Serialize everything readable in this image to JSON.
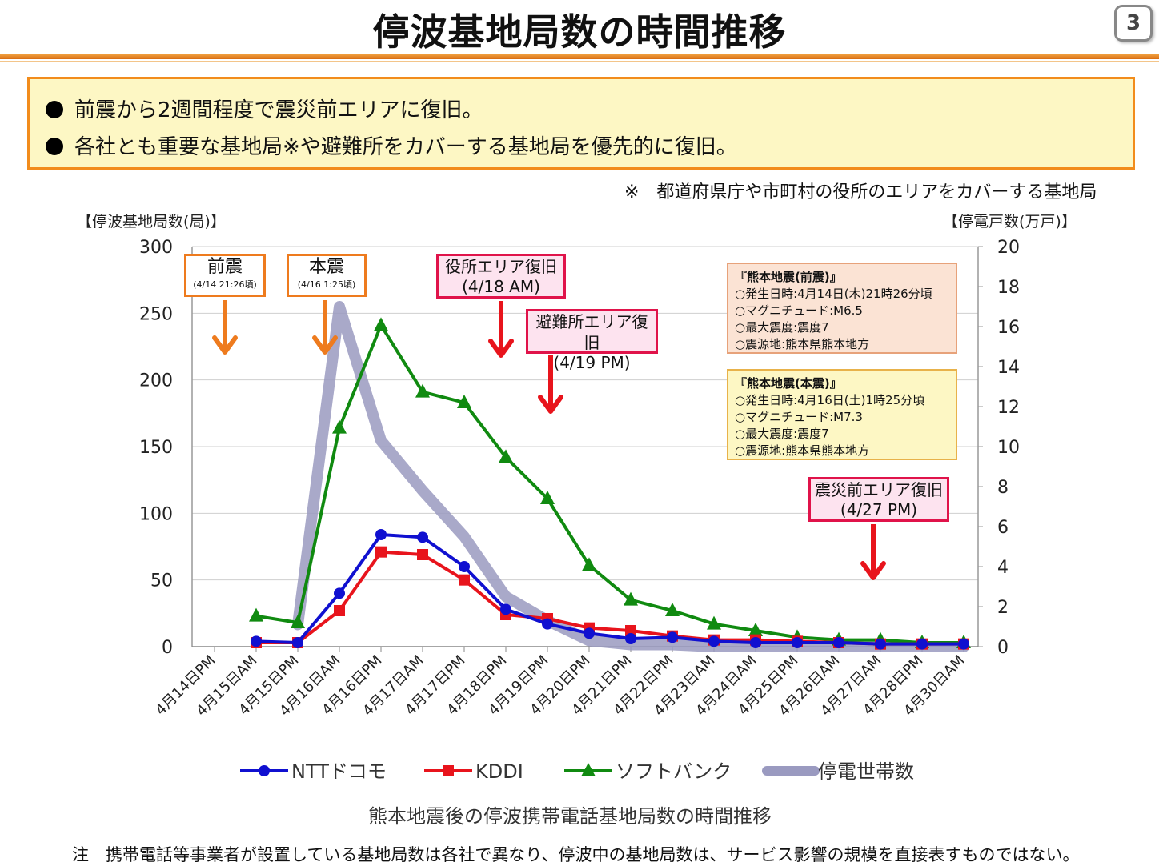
{
  "header": {
    "title": "停波基地局数の時間推移",
    "page_number": "3"
  },
  "summary": {
    "bullets": [
      "前震から2週間程度で震災前エリアに復旧。",
      "各社とも重要な基地局※や避難所をカバーする基地局を優先的に復旧。"
    ]
  },
  "footnote_top": "※　都道府県庁や市町村の役所のエリアをカバーする基地局",
  "chart_data": {
    "type": "line",
    "ylabel": "【停波基地局数(局)】",
    "y2label": "【停電戸数(万戸)】",
    "ylim": [
      0,
      300
    ],
    "y2lim": [
      0,
      20
    ],
    "yticks": [
      0,
      50,
      100,
      150,
      200,
      250,
      300
    ],
    "y2ticks": [
      0,
      2,
      4,
      6,
      8,
      10,
      12,
      14,
      16,
      18,
      20
    ],
    "grid": "horizontal",
    "legend_position": "bottom",
    "categories": [
      "4月14日PM",
      "4月15日AM",
      "4月15日PM",
      "4月16日AM",
      "4月16日PM",
      "4月17日AM",
      "4月17日PM",
      "4月18日PM",
      "4月19日PM",
      "4月20日PM",
      "4月21日PM",
      "4月22日PM",
      "4月23日AM",
      "4月24日AM",
      "4月25日PM",
      "4月26日AM",
      "4月27日AM",
      "4月28日PM",
      "4月30日AM"
    ],
    "series": [
      {
        "name": "NTTドコモ",
        "axis": "left",
        "color": "#1010d0",
        "marker": "circle",
        "values": [
          null,
          4,
          3,
          40,
          84,
          82,
          60,
          28,
          17,
          10,
          6,
          7,
          4,
          3,
          3,
          3,
          2,
          2,
          2
        ]
      },
      {
        "name": "KDDI",
        "axis": "left",
        "color": "#e8141c",
        "marker": "square",
        "values": [
          null,
          3,
          3,
          27,
          71,
          69,
          50,
          24,
          21,
          14,
          12,
          8,
          5,
          5,
          4,
          3,
          2,
          2,
          2
        ]
      },
      {
        "name": "ソフトバンク",
        "axis": "left",
        "color": "#108a10",
        "marker": "triangle",
        "values": [
          null,
          23,
          18,
          164,
          241,
          191,
          183,
          142,
          111,
          61,
          35,
          27,
          17,
          12,
          7,
          5,
          5,
          3,
          3
        ]
      },
      {
        "name": "停電世帯数",
        "axis": "right",
        "color": "#9a9ac0",
        "marker": "none",
        "values": [
          null,
          null,
          1.1,
          17.0,
          10.3,
          7.8,
          5.5,
          2.5,
          1.3,
          0.3,
          0.1,
          0.1,
          0.0,
          0.0,
          0.0,
          0.0,
          0.0,
          0.0,
          0.0
        ]
      }
    ]
  },
  "annotations": {
    "foreshock": {
      "label": "前震",
      "sub": "(4/14 21:26頃)"
    },
    "mainshock": {
      "label": "本震",
      "sub": "(4/16 1:25頃)"
    },
    "office_restore": {
      "label": "役所エリア復旧",
      "sub": "(4/18 AM)"
    },
    "shelter_restore": {
      "label": "避難所エリア復旧",
      "sub": "(4/19 PM)"
    },
    "pre_disaster_restore": {
      "label": "震災前エリア復旧",
      "sub": "(4/27 PM)"
    }
  },
  "info_boxes": {
    "foreshock": {
      "title": "『熊本地震(前震)』",
      "lines": [
        "○発生日時:4月14日(木)21時26分頃",
        "○マグニチュード:M6.5",
        "○最大震度:震度7",
        "○震源地:熊本県熊本地方"
      ]
    },
    "mainshock": {
      "title": "『熊本地震(本震)』",
      "lines": [
        "○発生日時:4月16日(土)1時25分頃",
        "○マグニチュード:M7.3",
        "○最大震度:震度7",
        "○震源地:熊本県熊本地方"
      ]
    }
  },
  "caption": "熊本地震後の停波携帯電話基地局数の時間推移",
  "bottom_note": "注　携帯電話等事業者が設置している基地局数は各社で異なり、停波中の基地局数は、サービス影響の規模を直接表すものではない。",
  "colors": {
    "accent_orange": "#ee7b1e",
    "accent_pink": "#e0134a",
    "summary_bg": "#fdf7c4"
  }
}
